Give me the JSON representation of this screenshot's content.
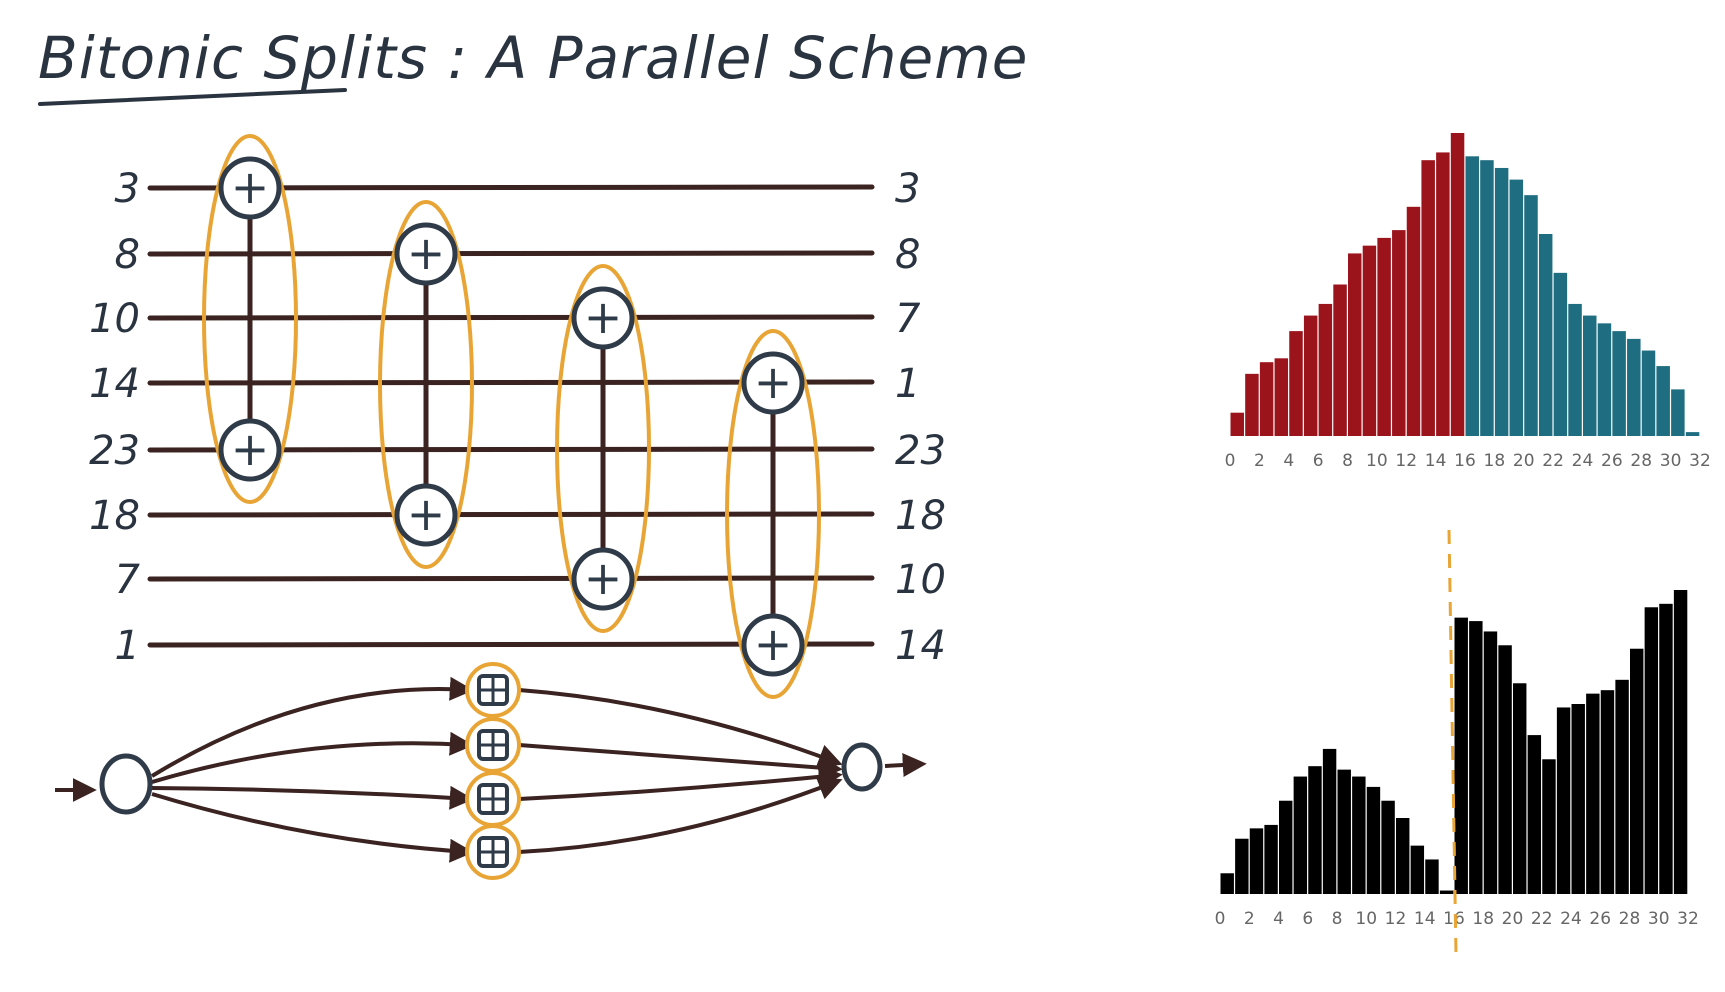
{
  "title": "Bitonic Splits : A Parallel Scheme",
  "network": {
    "input_values": [
      "3",
      "8",
      "10",
      "14",
      "23",
      "18",
      "7",
      "1"
    ],
    "output_values": [
      "3",
      "8",
      "7",
      "1",
      "23",
      "18",
      "10",
      "14"
    ],
    "comparators": [
      {
        "top_wire": 0,
        "bottom_wire": 4
      },
      {
        "top_wire": 1,
        "bottom_wire": 5
      },
      {
        "top_wire": 2,
        "bottom_wire": 6
      },
      {
        "top_wire": 3,
        "bottom_wire": 7
      }
    ],
    "comparator_symbol": "+",
    "colors": {
      "wire": "#3a2320",
      "comparator": "#2f3b48",
      "highlight": "#e8a536"
    }
  },
  "task_graph": {
    "task_count": 4,
    "colors": {
      "edge": "#3a2320",
      "node": "#2f3b48",
      "highlight": "#e8a536"
    }
  },
  "chart_data": [
    {
      "type": "bar",
      "x": [
        0,
        1,
        2,
        3,
        4,
        5,
        6,
        7,
        8,
        9,
        10,
        11,
        12,
        13,
        14,
        15,
        16,
        17,
        18,
        19,
        20,
        21,
        22,
        23,
        24,
        25,
        26,
        27,
        28,
        29,
        30,
        31
      ],
      "tick_labels": [
        "0",
        "2",
        "4",
        "6",
        "8",
        "10",
        "12",
        "14",
        "16",
        "18",
        "20",
        "22",
        "24",
        "26",
        "28",
        "30",
        "32"
      ],
      "xlim": [
        0,
        32
      ],
      "values": [
        6,
        16,
        19,
        20,
        27,
        31,
        34,
        39,
        47,
        49,
        51,
        53,
        59,
        71,
        73,
        78,
        72,
        71,
        69,
        66,
        62,
        52,
        42,
        34,
        31,
        29,
        27,
        25,
        22,
        18,
        12,
        1
      ],
      "series_colors": {
        "first_half": "#9b141c",
        "second_half": "#1f6d80"
      },
      "grid": false
    },
    {
      "type": "bar",
      "x": [
        0,
        1,
        2,
        3,
        4,
        5,
        6,
        7,
        8,
        9,
        10,
        11,
        12,
        13,
        14,
        15,
        16,
        17,
        18,
        19,
        20,
        21,
        22,
        23,
        24,
        25,
        26,
        27,
        28,
        29,
        30,
        31
      ],
      "tick_labels": [
        "0",
        "2",
        "4",
        "6",
        "8",
        "10",
        "12",
        "14",
        "16",
        "18",
        "20",
        "22",
        "24",
        "26",
        "28",
        "30",
        "32"
      ],
      "xlim": [
        0,
        32
      ],
      "values": [
        6,
        16,
        19,
        20,
        27,
        34,
        37,
        42,
        36,
        34,
        31,
        27,
        22,
        14,
        10,
        1,
        80,
        79,
        76,
        72,
        61,
        46,
        39,
        54,
        55,
        58,
        59,
        62,
        71,
        83,
        84,
        88
      ],
      "series_colors": {
        "bars": "#000000",
        "divider": "#e8a536"
      },
      "divider_at": 15.5,
      "grid": false
    }
  ]
}
